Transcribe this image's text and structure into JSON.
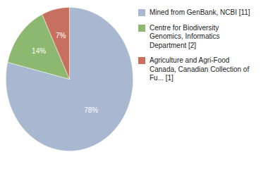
{
  "chart_data": {
    "type": "pie",
    "categories": [
      "Mined from GenBank, NCBI [11]",
      "Centre for Biodiversity\nGenomics, Informatics\nDepartment [2]",
      "Agriculture and Agri-Food\nCanada, Canadian Collection of\nFu... [1]"
    ],
    "values": [
      78,
      14,
      7
    ],
    "value_labels": [
      "78%",
      "14%",
      "7%"
    ],
    "colors": [
      "#a8b8d0",
      "#8db870",
      "#c87060"
    ],
    "data_labels": true,
    "legend": "right"
  }
}
